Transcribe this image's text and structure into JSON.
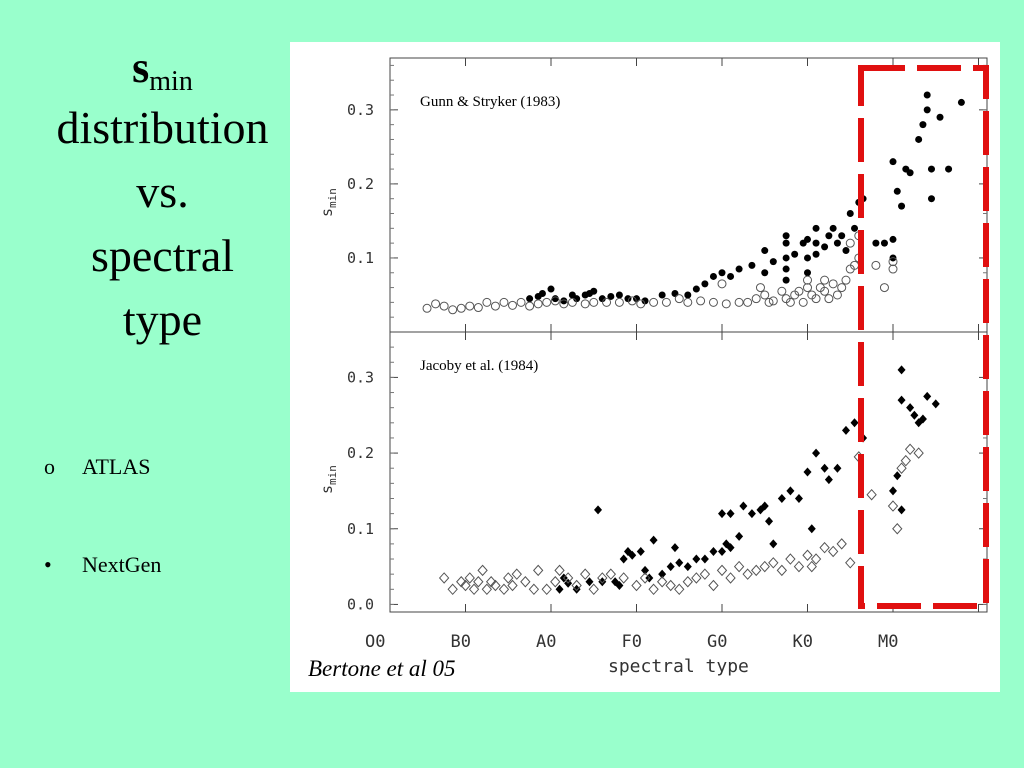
{
  "title": {
    "symbol": "s",
    "subscript": "min",
    "lines": [
      "distribution",
      "vs.",
      "spectral",
      "type"
    ]
  },
  "bullets": [
    {
      "marker": "o",
      "text": "ATLAS"
    },
    {
      "marker": "•",
      "text": "NextGen"
    }
  ],
  "credit": "Bertone et al 05",
  "colors": {
    "background": "#99ffcc",
    "highlight": "#e01010",
    "marks": "#000000"
  },
  "chart_data": [
    {
      "type": "scatter",
      "annotation": "Gunn & Stryker (1983)",
      "xlabel": "spectral type",
      "ylabel": "s",
      "ylabel_sub": "min",
      "xlim": [
        0,
        7.2
      ],
      "ylim": [
        0.0,
        0.37
      ],
      "y_ticks": [
        "0.1",
        "0.2",
        "0.3"
      ],
      "y_tick_values": [
        0.1,
        0.2,
        0.3
      ],
      "x_categories": [
        "O0",
        "B0",
        "A0",
        "F0",
        "G0",
        "K0",
        "M0"
      ],
      "highlight_box_x": [
        5.45,
        7.1
      ],
      "series": [
        {
          "marker": "filled-circle",
          "points": [
            [
              1.75,
              0.045
            ],
            [
              1.85,
              0.048
            ],
            [
              1.9,
              0.052
            ],
            [
              2.0,
              0.058
            ],
            [
              2.05,
              0.045
            ],
            [
              2.15,
              0.042
            ],
            [
              2.25,
              0.05
            ],
            [
              2.3,
              0.045
            ],
            [
              2.4,
              0.05
            ],
            [
              2.45,
              0.052
            ],
            [
              2.5,
              0.055
            ],
            [
              2.6,
              0.045
            ],
            [
              2.7,
              0.048
            ],
            [
              2.8,
              0.05
            ],
            [
              2.9,
              0.045
            ],
            [
              3.0,
              0.045
            ],
            [
              3.1,
              0.042
            ],
            [
              3.3,
              0.05
            ],
            [
              3.45,
              0.052
            ],
            [
              3.6,
              0.05
            ],
            [
              3.7,
              0.058
            ],
            [
              3.8,
              0.065
            ],
            [
              3.9,
              0.075
            ],
            [
              4.0,
              0.08
            ],
            [
              4.1,
              0.075
            ],
            [
              4.2,
              0.085
            ],
            [
              4.35,
              0.09
            ],
            [
              4.5,
              0.11
            ],
            [
              4.5,
              0.08
            ],
            [
              4.6,
              0.095
            ],
            [
              4.75,
              0.12
            ],
            [
              4.75,
              0.1
            ],
            [
              4.75,
              0.085
            ],
            [
              4.75,
              0.07
            ],
            [
              4.75,
              0.13
            ],
            [
              4.85,
              0.105
            ],
            [
              4.95,
              0.12
            ],
            [
              5.0,
              0.125
            ],
            [
              5.0,
              0.1
            ],
            [
              5.0,
              0.08
            ],
            [
              5.1,
              0.14
            ],
            [
              5.1,
              0.12
            ],
            [
              5.1,
              0.105
            ],
            [
              5.2,
              0.115
            ],
            [
              5.25,
              0.13
            ],
            [
              5.3,
              0.14
            ],
            [
              5.35,
              0.12
            ],
            [
              5.4,
              0.13
            ],
            [
              5.45,
              0.11
            ],
            [
              5.5,
              0.16
            ],
            [
              5.55,
              0.14
            ],
            [
              5.6,
              0.175
            ],
            [
              5.65,
              0.18
            ],
            [
              5.8,
              0.12
            ],
            [
              5.9,
              0.12
            ],
            [
              6.05,
              0.19
            ],
            [
              6.1,
              0.17
            ],
            [
              6.15,
              0.22
            ],
            [
              6.2,
              0.215
            ],
            [
              6.3,
              0.26
            ],
            [
              6.35,
              0.28
            ],
            [
              6.4,
              0.3
            ],
            [
              6.4,
              0.32
            ],
            [
              6.45,
              0.22
            ],
            [
              6.45,
              0.18
            ],
            [
              6.55,
              0.29
            ],
            [
              6.65,
              0.22
            ],
            [
              6.8,
              0.31
            ],
            [
              6.0,
              0.1
            ],
            [
              6.0,
              0.125
            ],
            [
              6.0,
              0.23
            ]
          ]
        },
        {
          "marker": "open-circle",
          "points": [
            [
              0.55,
              0.032
            ],
            [
              0.65,
              0.038
            ],
            [
              0.75,
              0.035
            ],
            [
              0.85,
              0.03
            ],
            [
              0.95,
              0.032
            ],
            [
              1.05,
              0.035
            ],
            [
              1.15,
              0.033
            ],
            [
              1.25,
              0.04
            ],
            [
              1.35,
              0.035
            ],
            [
              1.45,
              0.04
            ],
            [
              1.55,
              0.036
            ],
            [
              1.65,
              0.04
            ],
            [
              1.75,
              0.035
            ],
            [
              1.85,
              0.038
            ],
            [
              1.95,
              0.04
            ],
            [
              2.05,
              0.042
            ],
            [
              2.15,
              0.038
            ],
            [
              2.25,
              0.04
            ],
            [
              2.4,
              0.038
            ],
            [
              2.5,
              0.04
            ],
            [
              2.65,
              0.04
            ],
            [
              2.8,
              0.04
            ],
            [
              2.95,
              0.042
            ],
            [
              3.05,
              0.038
            ],
            [
              3.2,
              0.04
            ],
            [
              3.35,
              0.04
            ],
            [
              3.5,
              0.045
            ],
            [
              3.6,
              0.04
            ],
            [
              3.75,
              0.042
            ],
            [
              3.9,
              0.04
            ],
            [
              4.0,
              0.065
            ],
            [
              4.05,
              0.038
            ],
            [
              4.2,
              0.04
            ],
            [
              4.3,
              0.04
            ],
            [
              4.4,
              0.045
            ],
            [
              4.45,
              0.06
            ],
            [
              4.5,
              0.05
            ],
            [
              4.55,
              0.04
            ],
            [
              4.6,
              0.042
            ],
            [
              4.7,
              0.055
            ],
            [
              4.75,
              0.045
            ],
            [
              4.8,
              0.04
            ],
            [
              4.85,
              0.05
            ],
            [
              4.9,
              0.055
            ],
            [
              4.95,
              0.04
            ],
            [
              5.0,
              0.06
            ],
            [
              5.0,
              0.07
            ],
            [
              5.05,
              0.05
            ],
            [
              5.1,
              0.045
            ],
            [
              5.15,
              0.06
            ],
            [
              5.2,
              0.055
            ],
            [
              5.2,
              0.07
            ],
            [
              5.25,
              0.045
            ],
            [
              5.3,
              0.065
            ],
            [
              5.35,
              0.05
            ],
            [
              5.4,
              0.06
            ],
            [
              5.45,
              0.07
            ],
            [
              5.5,
              0.085
            ],
            [
              5.55,
              0.09
            ],
            [
              5.6,
              0.1
            ],
            [
              5.5,
              0.12
            ],
            [
              5.6,
              0.13
            ],
            [
              5.8,
              0.09
            ],
            [
              5.9,
              0.06
            ],
            [
              6.0,
              0.085
            ],
            [
              6.0,
              0.095
            ]
          ]
        }
      ]
    },
    {
      "type": "scatter",
      "annotation": "Jacoby et al. (1984)",
      "xlabel": "spectral type",
      "ylabel": "s",
      "ylabel_sub": "min",
      "xlim": [
        0,
        7.2
      ],
      "ylim": [
        -0.01,
        0.36
      ],
      "y_ticks": [
        "0.0",
        "0.1",
        "0.2",
        "0.3"
      ],
      "y_tick_values": [
        0.0,
        0.1,
        0.2,
        0.3
      ],
      "x_ticks": [
        "O0",
        "B0",
        "A0",
        "F0",
        "G0",
        "K0",
        "M0"
      ],
      "x_tick_values": [
        0,
        1,
        2,
        3,
        4,
        5,
        6
      ],
      "highlight_box_x": [
        5.45,
        7.1
      ],
      "series": [
        {
          "marker": "filled-diamond",
          "points": [
            [
              2.1,
              0.02
            ],
            [
              2.15,
              0.035
            ],
            [
              2.2,
              0.028
            ],
            [
              2.3,
              0.02
            ],
            [
              2.45,
              0.03
            ],
            [
              2.6,
              0.03
            ],
            [
              2.75,
              0.03
            ],
            [
              2.8,
              0.025
            ],
            [
              2.85,
              0.06
            ],
            [
              2.9,
              0.07
            ],
            [
              2.95,
              0.065
            ],
            [
              3.05,
              0.07
            ],
            [
              3.1,
              0.045
            ],
            [
              3.15,
              0.035
            ],
            [
              3.3,
              0.04
            ],
            [
              3.4,
              0.05
            ],
            [
              3.5,
              0.055
            ],
            [
              3.6,
              0.05
            ],
            [
              3.7,
              0.06
            ],
            [
              3.8,
              0.06
            ],
            [
              3.9,
              0.07
            ],
            [
              4.0,
              0.07
            ],
            [
              4.0,
              0.12
            ],
            [
              4.05,
              0.08
            ],
            [
              4.1,
              0.12
            ],
            [
              4.2,
              0.09
            ],
            [
              4.25,
              0.13
            ],
            [
              4.35,
              0.12
            ],
            [
              4.45,
              0.125
            ],
            [
              4.55,
              0.11
            ],
            [
              4.6,
              0.08
            ],
            [
              4.7,
              0.14
            ],
            [
              4.8,
              0.15
            ],
            [
              4.9,
              0.14
            ],
            [
              5.0,
              0.175
            ],
            [
              5.1,
              0.2
            ],
            [
              5.2,
              0.18
            ],
            [
              5.25,
              0.165
            ],
            [
              5.35,
              0.18
            ],
            [
              5.45,
              0.23
            ],
            [
              5.55,
              0.24
            ],
            [
              5.65,
              0.22
            ],
            [
              2.55,
              0.125
            ],
            [
              3.2,
              0.085
            ],
            [
              3.45,
              0.075
            ],
            [
              5.05,
              0.1
            ],
            [
              4.1,
              0.075
            ],
            [
              4.5,
              0.13
            ],
            [
              6.0,
              0.15
            ],
            [
              6.05,
              0.17
            ],
            [
              6.1,
              0.125
            ],
            [
              6.1,
              0.27
            ],
            [
              6.1,
              0.31
            ],
            [
              6.2,
              0.26
            ],
            [
              6.25,
              0.25
            ],
            [
              6.3,
              0.24
            ],
            [
              6.35,
              0.245
            ],
            [
              6.4,
              0.275
            ],
            [
              6.5,
              0.265
            ]
          ]
        },
        {
          "marker": "open-diamond",
          "points": [
            [
              0.75,
              0.035
            ],
            [
              0.85,
              0.02
            ],
            [
              0.95,
              0.03
            ],
            [
              1.0,
              0.025
            ],
            [
              1.05,
              0.035
            ],
            [
              1.1,
              0.02
            ],
            [
              1.15,
              0.03
            ],
            [
              1.2,
              0.045
            ],
            [
              1.25,
              0.02
            ],
            [
              1.3,
              0.03
            ],
            [
              1.35,
              0.025
            ],
            [
              1.45,
              0.02
            ],
            [
              1.5,
              0.035
            ],
            [
              1.55,
              0.025
            ],
            [
              1.6,
              0.04
            ],
            [
              1.7,
              0.03
            ],
            [
              1.8,
              0.02
            ],
            [
              1.85,
              0.045
            ],
            [
              1.95,
              0.02
            ],
            [
              2.05,
              0.03
            ],
            [
              2.1,
              0.045
            ],
            [
              2.2,
              0.035
            ],
            [
              2.3,
              0.025
            ],
            [
              2.4,
              0.04
            ],
            [
              2.5,
              0.02
            ],
            [
              2.6,
              0.035
            ],
            [
              2.7,
              0.04
            ],
            [
              2.85,
              0.035
            ],
            [
              3.0,
              0.025
            ],
            [
              3.1,
              0.035
            ],
            [
              3.2,
              0.02
            ],
            [
              3.3,
              0.03
            ],
            [
              3.4,
              0.025
            ],
            [
              3.5,
              0.02
            ],
            [
              3.6,
              0.03
            ],
            [
              3.7,
              0.035
            ],
            [
              3.8,
              0.04
            ],
            [
              3.9,
              0.025
            ],
            [
              4.0,
              0.045
            ],
            [
              4.1,
              0.035
            ],
            [
              4.2,
              0.05
            ],
            [
              4.3,
              0.04
            ],
            [
              4.4,
              0.045
            ],
            [
              4.5,
              0.05
            ],
            [
              4.6,
              0.055
            ],
            [
              4.7,
              0.045
            ],
            [
              4.8,
              0.06
            ],
            [
              4.9,
              0.05
            ],
            [
              5.0,
              0.065
            ],
            [
              5.05,
              0.05
            ],
            [
              5.1,
              0.06
            ],
            [
              5.2,
              0.075
            ],
            [
              5.3,
              0.07
            ],
            [
              5.4,
              0.08
            ],
            [
              5.5,
              0.055
            ],
            [
              5.6,
              0.195
            ],
            [
              5.75,
              0.145
            ],
            [
              6.0,
              0.13
            ],
            [
              6.05,
              0.1
            ],
            [
              6.1,
              0.18
            ],
            [
              6.15,
              0.19
            ],
            [
              6.2,
              0.205
            ],
            [
              6.3,
              0.2
            ]
          ]
        }
      ]
    }
  ]
}
